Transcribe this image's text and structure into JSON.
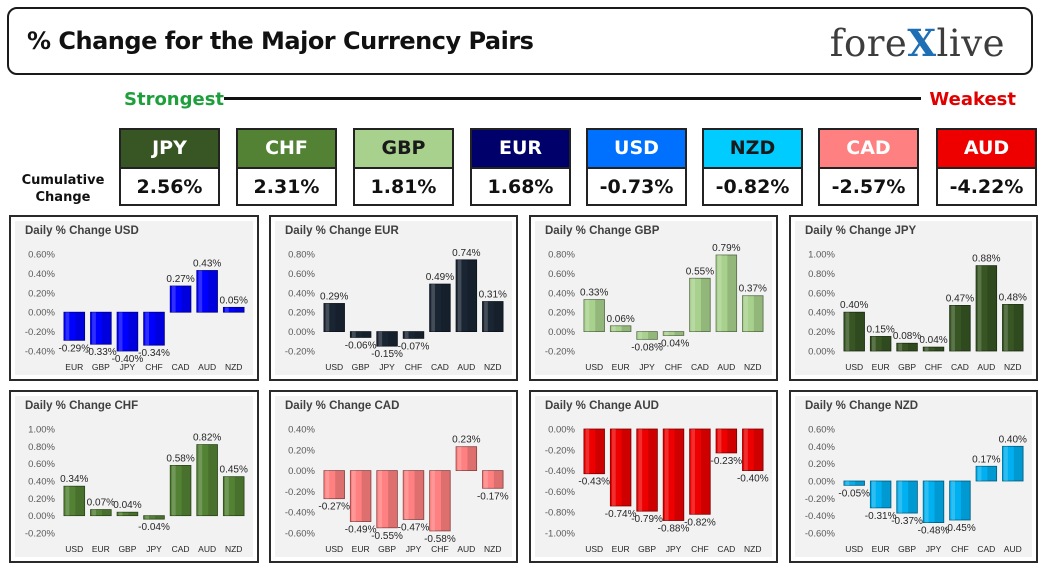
{
  "header": {
    "title": "% Change for the Major Currency Pairs",
    "logo_left": "fore",
    "logo_x": "X",
    "logo_right": "live"
  },
  "ranking": {
    "strongest_label": "Strongest",
    "weakest_label": "Weakest",
    "cumulative_label": "Cumulative Change"
  },
  "currencies": [
    {
      "name": "JPY",
      "value": "2.56%",
      "color": "#375623",
      "text_color": "#ffffff"
    },
    {
      "name": "CHF",
      "value": "2.31%",
      "color": "#548235",
      "text_color": "#ffffff"
    },
    {
      "name": "GBP",
      "value": "1.81%",
      "color": "#a9d18e",
      "text_color": "#1a1a1a"
    },
    {
      "name": "EUR",
      "value": "1.68%",
      "color": "#00006b",
      "text_color": "#ffffff"
    },
    {
      "name": "USD",
      "value": "-0.73%",
      "color": "#0070ff",
      "text_color": "#ffffff"
    },
    {
      "name": "NZD",
      "value": "-0.82%",
      "color": "#00ccff",
      "text_color": "#1a1a1a"
    },
    {
      "name": "CAD",
      "value": "-2.57%",
      "color": "#ff8080",
      "text_color": "#ffffff"
    },
    {
      "name": "AUD",
      "value": "-4.22%",
      "color": "#ee0000",
      "text_color": "#ffffff"
    }
  ],
  "chart_data": [
    {
      "type": "bar",
      "title": "Daily % Change USD",
      "categories": [
        "EUR",
        "GBP",
        "JPY",
        "CHF",
        "CAD",
        "AUD",
        "NZD"
      ],
      "values": [
        -0.29,
        -0.33,
        -0.4,
        -0.34,
        0.27,
        0.43,
        0.05
      ],
      "labels": [
        "-0.29%",
        "-0.33%",
        "-0.40%",
        "-0.34%",
        "0.27%",
        "0.43%",
        "0.05%"
      ],
      "yticks": [
        "0.60%",
        "0.40%",
        "0.20%",
        "0.00%",
        "-0.20%",
        "-0.40%"
      ],
      "ylim": [
        -0.4,
        0.6
      ],
      "color": "#0000ff"
    },
    {
      "type": "bar",
      "title": "Daily % Change EUR",
      "categories": [
        "USD",
        "GBP",
        "JPY",
        "CHF",
        "CAD",
        "AUD",
        "NZD"
      ],
      "values": [
        0.29,
        -0.06,
        -0.15,
        -0.07,
        0.49,
        0.74,
        0.31
      ],
      "labels": [
        "0.29%",
        "-0.06%",
        "-0.15%",
        "-0.07%",
        "0.49%",
        "0.74%",
        "0.31%"
      ],
      "yticks": [
        "0.80%",
        "0.60%",
        "0.40%",
        "0.20%",
        "0.00%",
        "-0.20%"
      ],
      "ylim": [
        -0.2,
        0.8
      ],
      "color": "#1a2533"
    },
    {
      "type": "bar",
      "title": "Daily % Change GBP",
      "categories": [
        "USD",
        "EUR",
        "JPY",
        "CHF",
        "CAD",
        "AUD",
        "NZD"
      ],
      "values": [
        0.33,
        0.06,
        -0.08,
        -0.04,
        0.55,
        0.79,
        0.37
      ],
      "labels": [
        "0.33%",
        "0.06%",
        "-0.08%",
        "-0.04%",
        "0.55%",
        "0.79%",
        "0.37%"
      ],
      "yticks": [
        "0.80%",
        "0.60%",
        "0.40%",
        "0.20%",
        "0.00%",
        "-0.20%"
      ],
      "ylim": [
        -0.2,
        0.8
      ],
      "color": "#a9d18e"
    },
    {
      "type": "bar",
      "title": "Daily % Change JPY",
      "categories": [
        "USD",
        "EUR",
        "GBP",
        "CHF",
        "CAD",
        "AUD",
        "NZD"
      ],
      "values": [
        0.4,
        0.15,
        0.08,
        0.04,
        0.47,
        0.88,
        0.48
      ],
      "labels": [
        "0.40%",
        "0.15%",
        "0.08%",
        "0.04%",
        "0.47%",
        "0.88%",
        "0.48%"
      ],
      "yticks": [
        "1.00%",
        "0.80%",
        "0.60%",
        "0.40%",
        "0.20%",
        "0.00%"
      ],
      "ylim": [
        0,
        1.0
      ],
      "color": "#375623"
    },
    {
      "type": "bar",
      "title": "Daily % Change CHF",
      "categories": [
        "USD",
        "EUR",
        "GBP",
        "JPY",
        "CAD",
        "AUD",
        "NZD"
      ],
      "values": [
        0.34,
        0.07,
        0.04,
        -0.04,
        0.58,
        0.82,
        0.45
      ],
      "labels": [
        "0.34%",
        "0.07%",
        "0.04%",
        "-0.04%",
        "0.58%",
        "0.82%",
        "0.45%"
      ],
      "yticks": [
        "1.00%",
        "0.80%",
        "0.60%",
        "0.40%",
        "0.20%",
        "0.00%",
        "-0.20%"
      ],
      "ylim": [
        -0.2,
        1.0
      ],
      "color": "#548235"
    },
    {
      "type": "bar",
      "title": "Daily % Change CAD",
      "categories": [
        "USD",
        "EUR",
        "GBP",
        "JPY",
        "CHF",
        "AUD",
        "NZD"
      ],
      "values": [
        -0.27,
        -0.49,
        -0.55,
        -0.47,
        -0.58,
        0.23,
        -0.17
      ],
      "labels": [
        "-0.27%",
        "-0.49%",
        "-0.55%",
        "-0.47%",
        "-0.58%",
        "0.23%",
        "-0.17%"
      ],
      "yticks": [
        "0.40%",
        "0.20%",
        "0.00%",
        "-0.20%",
        "-0.40%",
        "-0.60%"
      ],
      "ylim": [
        -0.6,
        0.4
      ],
      "color": "#ff8080"
    },
    {
      "type": "bar",
      "title": "Daily % Change AUD",
      "categories": [
        "USD",
        "EUR",
        "GBP",
        "JPY",
        "CHF",
        "CAD",
        "NZD"
      ],
      "values": [
        -0.43,
        -0.74,
        -0.79,
        -0.88,
        -0.82,
        -0.23,
        -0.4
      ],
      "labels": [
        "-0.43%",
        "-0.74%",
        "-0.79%",
        "-0.88%",
        "-0.82%",
        "-0.23%",
        "-0.40%"
      ],
      "yticks": [
        "0.00%",
        "-0.20%",
        "-0.40%",
        "-0.60%",
        "-0.80%",
        "-1.00%"
      ],
      "ylim": [
        -1.0,
        0
      ],
      "color": "#ee0000"
    },
    {
      "type": "bar",
      "title": "Daily % Change NZD",
      "categories": [
        "USD",
        "EUR",
        "GBP",
        "JPY",
        "CHF",
        "CAD",
        "AUD"
      ],
      "values": [
        -0.05,
        -0.31,
        -0.37,
        -0.48,
        -0.45,
        0.17,
        0.4
      ],
      "labels": [
        "-0.05%",
        "-0.31%",
        "-0.37%",
        "-0.48%",
        "-0.45%",
        "0.17%",
        "0.40%"
      ],
      "yticks": [
        "0.60%",
        "0.40%",
        "0.20%",
        "0.00%",
        "-0.20%",
        "-0.40%",
        "-0.60%"
      ],
      "ylim": [
        -0.6,
        0.6
      ],
      "color": "#00b0f0"
    }
  ]
}
